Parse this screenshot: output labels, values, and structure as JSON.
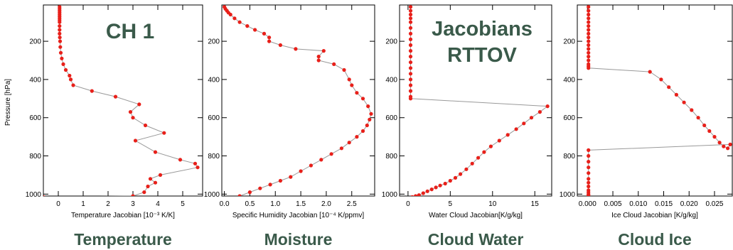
{
  "colors": {
    "caption": "#3a5a4a",
    "marker": "#e8201a",
    "line": "#999999",
    "axis": "#000000"
  },
  "overlays": {
    "ch": "CH 1",
    "jacobians": "Jacobians",
    "rttov": "RTTOV"
  },
  "chart_data": [
    {
      "type": "line",
      "panel": "temperature",
      "caption": "Temperature",
      "ylabel": "Pressure [hPa]",
      "xlabel": "Temperature Jacobian [10⁻³ K/K]",
      "xlim": [
        -0.6,
        5.8
      ],
      "ylim": [
        1010,
        10
      ],
      "xticks": [
        0,
        1,
        2,
        3,
        4,
        5
      ],
      "xticklabels": [
        "0",
        "1",
        "2",
        "3",
        "4",
        "5"
      ],
      "yticks": [
        200,
        400,
        600,
        800,
        1000
      ],
      "yticklabels": [
        "200",
        "400",
        "600",
        "800",
        "1000"
      ],
      "series": [
        {
          "x": [
            0.05,
            0.05,
            0.05,
            0.05,
            0.05,
            0.05,
            0.05,
            0.05,
            0.05,
            0.05,
            0.05,
            0.05,
            0.06,
            0.07,
            0.08,
            0.1,
            0.14,
            0.2,
            0.3,
            0.45,
            0.5,
            0.6,
            1.35,
            2.3,
            3.25,
            2.9,
            3.0,
            3.5,
            4.25,
            3.1,
            3.9,
            4.9,
            5.5,
            5.6,
            4.1,
            3.7,
            3.9,
            3.6,
            3.45,
            3.0,
            -0.6
          ],
          "y": [
            20,
            30,
            40,
            50,
            60,
            70,
            80,
            90,
            100,
            120,
            140,
            160,
            180,
            200,
            230,
            260,
            290,
            320,
            350,
            380,
            400,
            430,
            460,
            490,
            530,
            570,
            600,
            640,
            680,
            720,
            780,
            820,
            840,
            860,
            900,
            920,
            940,
            960,
            990,
            1010,
            1015
          ]
        }
      ]
    },
    {
      "type": "line",
      "panel": "moisture",
      "caption": "Moisture",
      "xlabel": "Specific Humidity Jacobian [10⁻⁴ K/ppmv]",
      "xlim": [
        -0.05,
        2.95
      ],
      "ylim": [
        1010,
        10
      ],
      "xticks": [
        0.0,
        0.5,
        1.0,
        1.5,
        2.0,
        2.5
      ],
      "xticklabels": [
        "0.0",
        "0.5",
        "1.0",
        "1.5",
        "2.0",
        "2.5"
      ],
      "yticks": [
        200,
        400,
        600,
        800,
        1000
      ],
      "yticklabels": [
        "200",
        "400",
        "600",
        "800",
        "1000"
      ],
      "series": [
        {
          "x": [
            0.0,
            0.02,
            0.05,
            0.08,
            0.12,
            0.2,
            0.3,
            0.45,
            0.6,
            0.78,
            0.88,
            0.88,
            1.1,
            1.4,
            1.95,
            1.85,
            1.85,
            2.15,
            2.35,
            2.45,
            2.5,
            2.6,
            2.72,
            2.82,
            2.88,
            2.85,
            2.8,
            2.72,
            2.6,
            2.45,
            2.3,
            2.1,
            1.9,
            1.7,
            1.5,
            1.3,
            1.1,
            0.9,
            0.7,
            0.5,
            0.3
          ],
          "y": [
            20,
            30,
            40,
            50,
            60,
            80,
            100,
            120,
            140,
            160,
            180,
            200,
            220,
            240,
            250,
            280,
            300,
            320,
            350,
            400,
            430,
            470,
            500,
            540,
            580,
            610,
            640,
            670,
            700,
            730,
            760,
            790,
            820,
            850,
            880,
            910,
            930,
            950,
            970,
            990,
            1010
          ]
        }
      ]
    },
    {
      "type": "line",
      "panel": "cloud-water",
      "caption": "Cloud Water",
      "xlabel": "Water Cloud Jacobian[K/g/kg]",
      "xlim": [
        -1,
        17
      ],
      "ylim": [
        1010,
        10
      ],
      "xticks": [
        0,
        5,
        10,
        15
      ],
      "xticklabels": [
        "0",
        "5",
        "10",
        "15"
      ],
      "yticks": [
        200,
        400,
        600,
        800,
        1000
      ],
      "yticklabels": [
        "200",
        "400",
        "600",
        "800",
        "1000"
      ],
      "series": [
        {
          "x": [
            0.3,
            0.3,
            0.3,
            0.3,
            0.3,
            0.3,
            0.3,
            0.3,
            0.3,
            0.3,
            0.3,
            0.3,
            0.3,
            0.3,
            0.3,
            0.3,
            0.3,
            0.3,
            0.3,
            16.5,
            15.6,
            14.6,
            13.7,
            12.8,
            11.8,
            10.8,
            9.8,
            9.0,
            8.3,
            7.6,
            6.9,
            6.2,
            5.6,
            5.0,
            4.4,
            3.8,
            3.3,
            2.8,
            2.3,
            1.8,
            1.3,
            0.9,
            0.5
          ],
          "y": [
            20,
            40,
            60,
            80,
            100,
            130,
            160,
            190,
            220,
            250,
            280,
            310,
            340,
            370,
            400,
            430,
            460,
            490,
            500,
            540,
            570,
            600,
            630,
            660,
            690,
            720,
            750,
            780,
            810,
            840,
            870,
            895,
            915,
            930,
            945,
            955,
            965,
            975,
            985,
            995,
            1005,
            1010,
            1015
          ]
        }
      ]
    },
    {
      "type": "line",
      "panel": "cloud-ice",
      "caption": "Cloud Ice",
      "xlabel": "Ice Cloud Jacobian [K/g/kg]",
      "xlim": [
        -0.002,
        0.0285
      ],
      "ylim": [
        1010,
        10
      ],
      "xticks": [
        0.0,
        0.005,
        0.01,
        0.015,
        0.02,
        0.025
      ],
      "xticklabels": [
        "0.000",
        "0.005",
        "0.010",
        "0.015",
        "0.020",
        "0.025"
      ],
      "yticks": [
        200,
        400,
        600,
        800,
        1000
      ],
      "yticklabels": [
        "200",
        "400",
        "600",
        "800",
        "1000"
      ],
      "series": [
        {
          "x": [
            0.0002,
            0.0002,
            0.0002,
            0.0002,
            0.0002,
            0.0002,
            0.0002,
            0.0002,
            0.0002,
            0.0002,
            0.0002,
            0.0002,
            0.0002,
            0.0002,
            0.0002,
            0.0002,
            0.0002,
            0.0002,
            0.0123,
            0.0145,
            0.016,
            0.0175,
            0.019,
            0.0205,
            0.0218,
            0.023,
            0.024,
            0.025,
            0.026,
            0.0268,
            0.0276,
            0.0281,
            0.0002,
            0.0002,
            0.0002,
            0.0002,
            0.0002,
            0.0002,
            0.0002,
            0.0002,
            0.0002,
            0.0002,
            0.0002,
            0.0002,
            0.0002
          ],
          "y": [
            20,
            40,
            60,
            80,
            100,
            120,
            140,
            160,
            180,
            200,
            220,
            240,
            260,
            280,
            300,
            320,
            330,
            340,
            360,
            400,
            440,
            480,
            520,
            560,
            600,
            640,
            670,
            700,
            730,
            750,
            760,
            740,
            770,
            800,
            830,
            860,
            890,
            920,
            940,
            960,
            980,
            990,
            1000,
            1005,
            1010
          ]
        }
      ]
    }
  ]
}
